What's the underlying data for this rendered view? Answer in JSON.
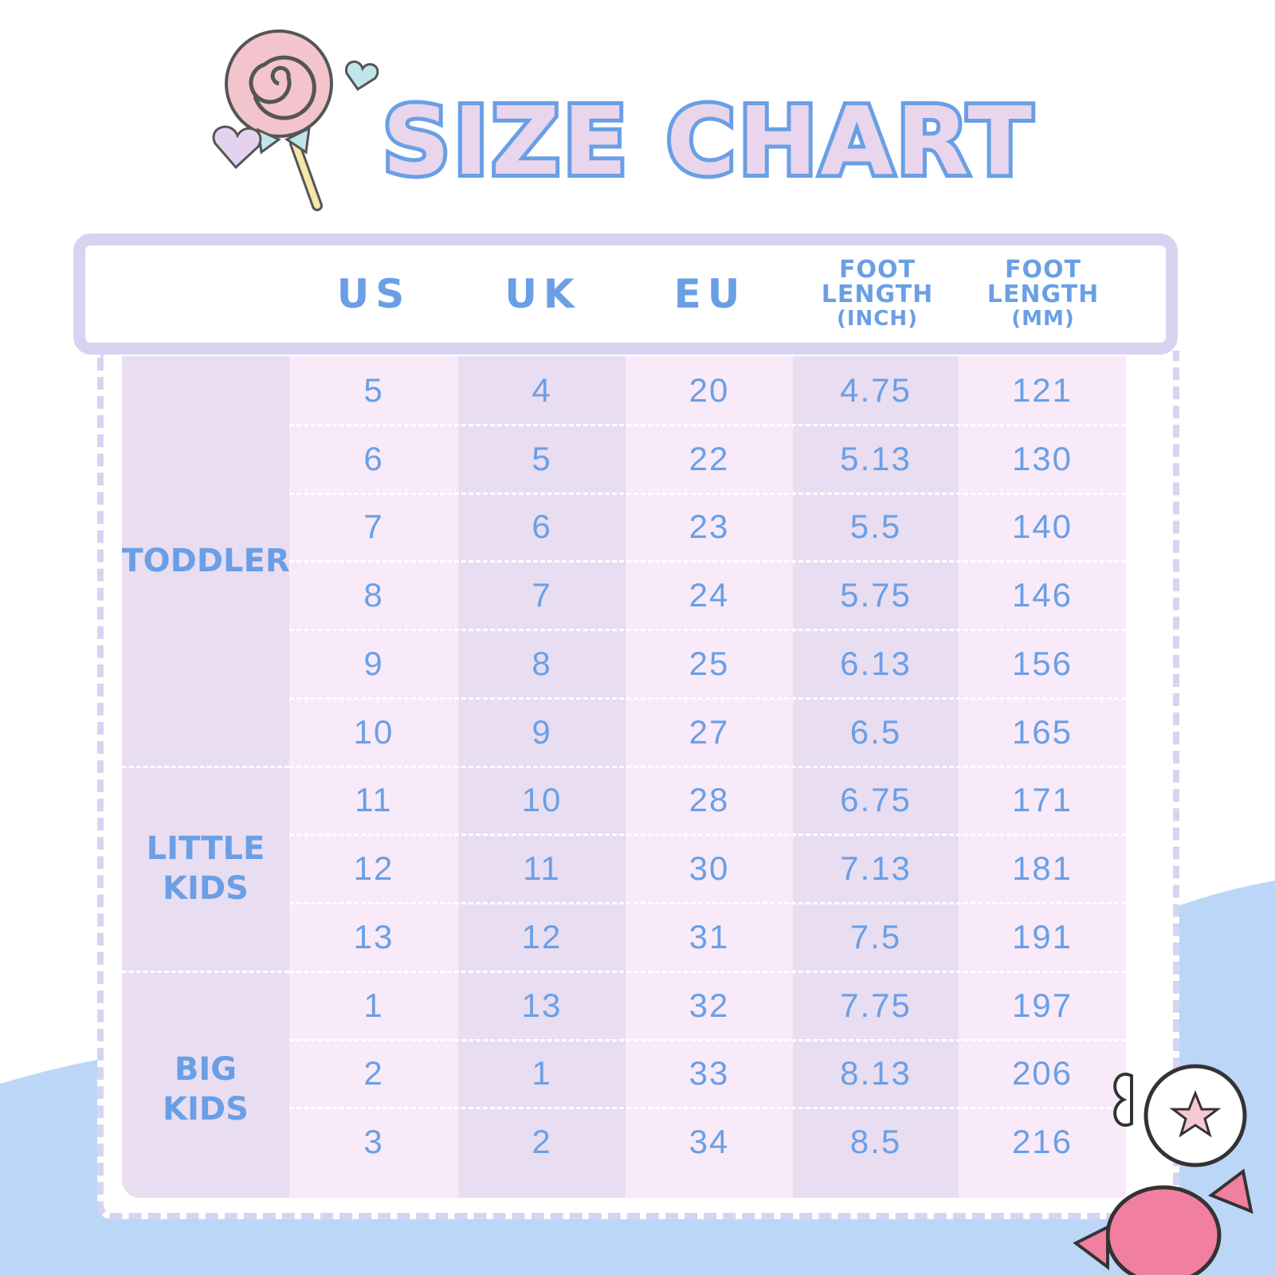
{
  "title": "SIZE CHART",
  "colors": {
    "text": "#6a9fe6",
    "cell_light": "#f8eaf8",
    "cell_dark": "#e9ddf1",
    "frame": "#d7d4f2",
    "wave": "#bcd6f8"
  },
  "columns": [
    {
      "lines": [
        "US"
      ]
    },
    {
      "lines": [
        "UK"
      ]
    },
    {
      "lines": [
        "EU"
      ]
    },
    {
      "lines": [
        "FOOT",
        "LENGTH",
        "(INCH)"
      ]
    },
    {
      "lines": [
        "FOOT",
        "LENGTH",
        "(MM)"
      ]
    }
  ],
  "groups": [
    {
      "label": [
        "TODDLER"
      ],
      "rows": 6
    },
    {
      "label": [
        "LITTLE",
        "KIDS"
      ],
      "rows": 3
    },
    {
      "label": [
        "BIG",
        "KIDS"
      ],
      "rows": 3
    }
  ],
  "rows": [
    [
      "5",
      "4",
      "20",
      "4.75",
      "121"
    ],
    [
      "6",
      "5",
      "22",
      "5.13",
      "130"
    ],
    [
      "7",
      "6",
      "23",
      "5.5",
      "140"
    ],
    [
      "8",
      "7",
      "24",
      "5.75",
      "146"
    ],
    [
      "9",
      "8",
      "25",
      "6.13",
      "156"
    ],
    [
      "10",
      "9",
      "27",
      "6.5",
      "165"
    ],
    [
      "11",
      "10",
      "28",
      "6.75",
      "171"
    ],
    [
      "12",
      "11",
      "30",
      "7.13",
      "181"
    ],
    [
      "13",
      "12",
      "31",
      "7.5",
      "191"
    ],
    [
      "1",
      "13",
      "32",
      "7.75",
      "197"
    ],
    [
      "2",
      "1",
      "33",
      "8.13",
      "206"
    ],
    [
      "3",
      "2",
      "34",
      "8.5",
      "216"
    ]
  ],
  "icons": [
    "lollipop-icon",
    "heart-icon",
    "candy-icon"
  ]
}
